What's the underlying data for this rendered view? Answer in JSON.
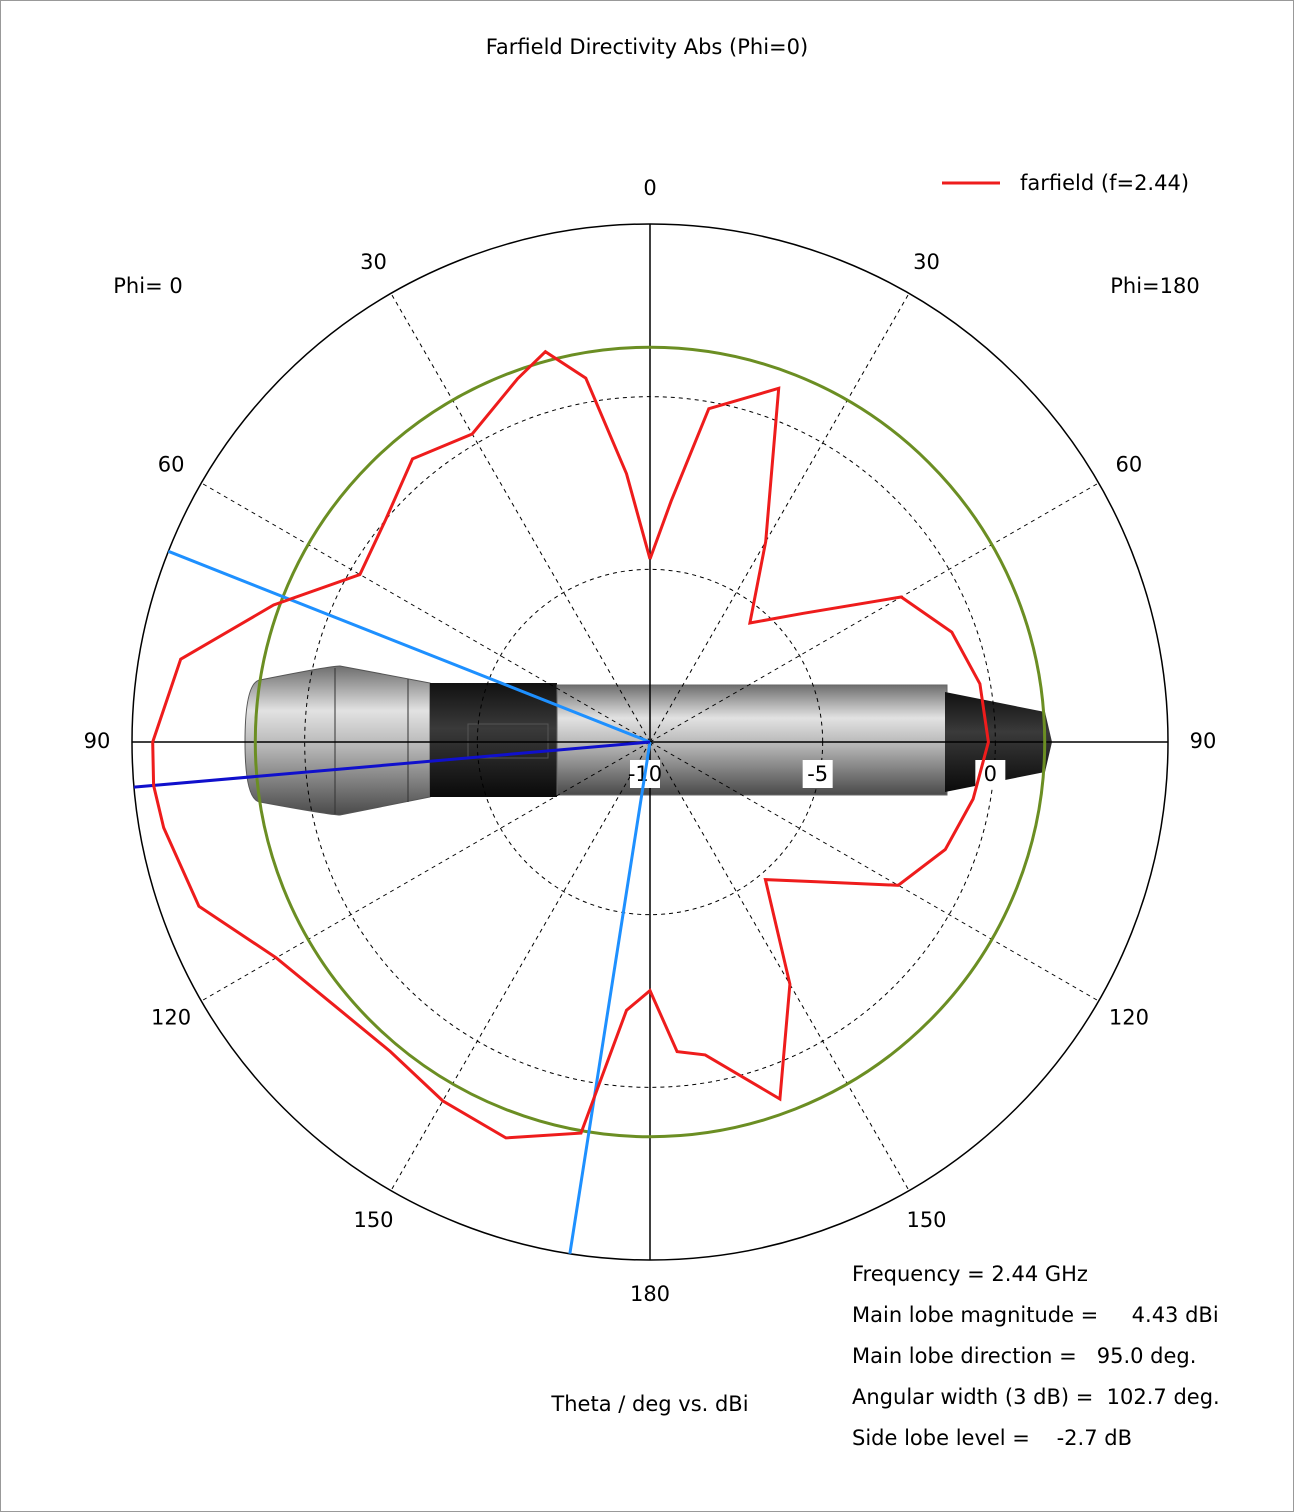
{
  "chart_data": {
    "type": "polar",
    "title": "Farfield Directivity Abs (Phi=0)",
    "left_label": "Phi= 0",
    "right_label": "Phi=180",
    "axis_label": "Theta / deg vs. dBi",
    "series": [
      {
        "name": "farfield (f=2.44)",
        "color": "#ee1c1c",
        "x": [
          0,
          5,
          10,
          15,
          20,
          30,
          40,
          50,
          60,
          70,
          80,
          90,
          95,
          100,
          110,
          120,
          130,
          140,
          150,
          160,
          170,
          175,
          180,
          185,
          190,
          200,
          210,
          220,
          230,
          240,
          250,
          260,
          270,
          280,
          290,
          300,
          310,
          320,
          330,
          340,
          350,
          355,
          360
        ],
        "values": [
          -4.7,
          -2.2,
          0.7,
          1.7,
          1.2,
          0.3,
          0.7,
          0.0,
          -0.3,
          1.6,
          3.8,
          4.4,
          4.43,
          4.3,
          3.9,
          2.5,
          1.9,
          1.7,
          2.0,
          2.2,
          1.5,
          -2.2,
          -2.8,
          -1.0,
          -0.8,
          1.0,
          -1.9,
          -4.8,
          -3.7,
          -1.7,
          -0.9,
          -0.5,
          -0.2,
          -0.3,
          -0.7,
          -1.6,
          -4.2,
          -5.5,
          -3.3,
          0.9,
          -0.2,
          -3.0,
          -4.7
        ]
      }
    ],
    "rlim": [
      -10,
      5
    ],
    "rticks": [
      -10,
      -5,
      0
    ],
    "theta_ticks": [
      0,
      30,
      60,
      90,
      120,
      150,
      180
    ],
    "threshold_level": 1.43,
    "threshold_color": "#6b8e23",
    "main_lobe_direction": 95.0,
    "main_lobe_color": "#1010cc",
    "beam_edges": [
      68.4,
      171.1
    ],
    "beam_edge_color": "#1e90ff",
    "grid": true,
    "annotations": [
      "Frequency = 2.44 GHz",
      "Main lobe magnitude =     4.43 dBi",
      "Main lobe direction =   95.0 deg.",
      "Angular width (3 dB) =  102.7 deg.",
      "Side lobe level =    -2.7 dB"
    ]
  }
}
